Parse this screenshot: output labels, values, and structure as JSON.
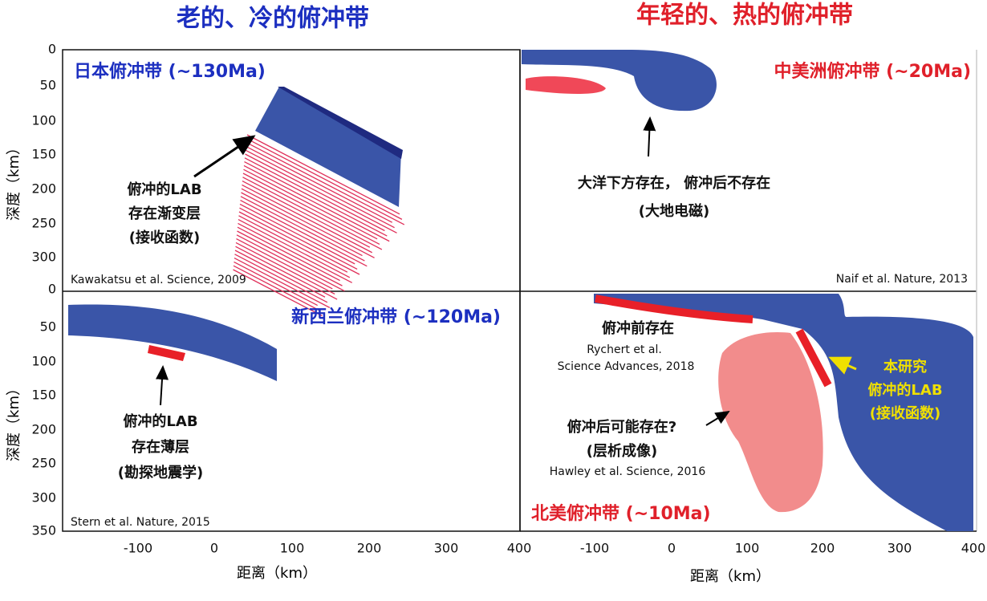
{
  "headings": {
    "left": "老的、冷的俯冲带",
    "right": "年轻的、热的俯冲带"
  },
  "axes": {
    "y_label": "深度（km）",
    "x_label": "距离（km）",
    "top_yticks": [
      "0",
      "50",
      "100",
      "150",
      "200",
      "250",
      "300",
      "0"
    ],
    "bottom_yticks": [
      "50",
      "100",
      "150",
      "200",
      "250",
      "300",
      "350"
    ],
    "xticks": [
      "-100",
      "0",
      "100",
      "200",
      "300",
      "400"
    ]
  },
  "panels": [
    {
      "title": "日本俯冲带 (~130Ma)",
      "annotation": [
        "俯冲的LAB",
        "存在渐变层",
        "(接收函数)"
      ],
      "citation": "Kawakatsu et al. Science, 2009"
    },
    {
      "title": "中美洲俯冲带 (~20Ma)",
      "annotation": [
        "大洋下方存在， 俯冲后不存在",
        "(大地电磁)"
      ],
      "citation": "Naif et al. Nature, 2013"
    },
    {
      "title": "新西兰俯冲带 (~120Ma)",
      "annotation": [
        "俯冲的LAB",
        "存在薄层",
        "(勘探地震学)"
      ],
      "citation": "Stern et al. Nature, 2015"
    },
    {
      "title": "北美俯冲带 (~10Ma)",
      "before": {
        "label": "俯冲前存在",
        "citation": [
          "Rychert et al.",
          "Science Advances, 2018"
        ]
      },
      "after": {
        "label": [
          "俯冲后可能存在?",
          "(层析成像)"
        ],
        "citation": "Hawley et al. Science, 2016"
      },
      "this_study": [
        "本研究",
        "俯冲的LAB",
        "(接收函数)"
      ]
    }
  ]
}
